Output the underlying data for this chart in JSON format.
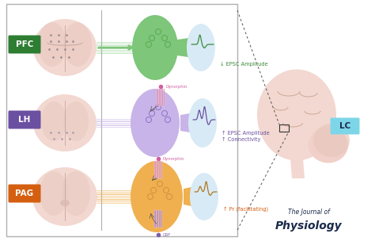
{
  "bg_color": "#ffffff",
  "labels": {
    "PFC": {
      "text": "PFC",
      "color": "#ffffff",
      "bg": "#2e7d32"
    },
    "LH": {
      "text": "LH",
      "color": "#ffffff",
      "bg": "#6b4fa0"
    },
    "PAG": {
      "text": "PAG",
      "color": "#ffffff",
      "bg": "#d45f10"
    },
    "LC": {
      "text": "LC",
      "color": "#1a2a4a",
      "bg": "#7dd6e8"
    }
  },
  "row_colors": {
    "PFC": "#7dc67a",
    "LH": "#c8b4e8",
    "PAG": "#f0b050"
  },
  "row_wave_colors": {
    "PFC": "#3a8a3a",
    "LH": "#6b4fa0",
    "PAG": "#b07820"
  },
  "annotations": {
    "PFC": {
      "text": "↓ EPSC Amplitude",
      "color": "#3a8a3a"
    },
    "LH": {
      "text": "↑ EPSC Amplitude\n↑ Connectivity",
      "color": "#6b4fa0"
    },
    "PAG": {
      "text": "↑ Pr (facilitating)",
      "color": "#d45f10"
    }
  },
  "dynorphin_color": "#d060a0",
  "crf_color": "#7b5ea7",
  "journal_color": "#1a2a4a",
  "brain_outer": "#f2d8d0",
  "brain_inner": "#e8c8c0",
  "dendrite_color": "#d8eaf5",
  "box_edge": "#b0b0b0"
}
